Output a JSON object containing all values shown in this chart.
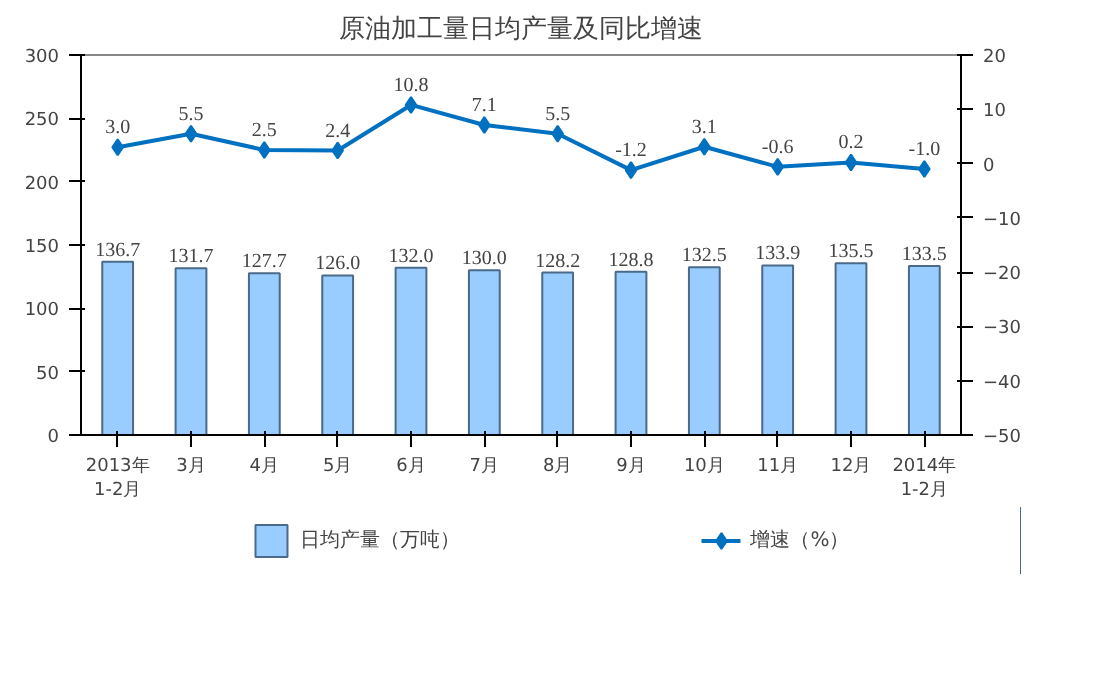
{
  "chart_data": {
    "type": "bar",
    "title": "原油加工量日均产量及同比增速",
    "categories": [
      "2013年\n1-2月",
      "3月",
      "4月",
      "5月",
      "6月",
      "7月",
      "8月",
      "9月",
      "10月",
      "11月",
      "12月",
      "2014年\n1-2月"
    ],
    "series": [
      {
        "name": "日均产量（万吨）",
        "color": "#99ccff",
        "values": [
          136.7,
          131.7,
          127.7,
          126.0,
          132.0,
          130.0,
          128.2,
          128.8,
          132.5,
          133.9,
          135.5,
          133.5
        ],
        "value_labels": [
          "136.7",
          "131.7",
          "127.7",
          "126.0",
          "132.0",
          "130.0",
          "128.2",
          "128.8",
          "132.5",
          "133.9",
          "135.5",
          "133.5"
        ]
      },
      {
        "name": "增速（%）",
        "type": "line",
        "axis": "y2",
        "color": "#0070c0",
        "marker": "diamond",
        "values": [
          3.0,
          5.5,
          2.5,
          2.4,
          10.8,
          7.1,
          5.5,
          -1.2,
          3.1,
          -0.6,
          0.2,
          -1.0
        ],
        "value_labels": [
          "3.0",
          "5.5",
          "2.5",
          "2.4",
          "10.8",
          "7.1",
          "5.5",
          "-1.2",
          "3.1",
          "-0.6",
          "0.2",
          "-1.0"
        ]
      }
    ],
    "ylim": [
      0,
      300
    ],
    "yticks": [
      0,
      50,
      100,
      150,
      200,
      250,
      300
    ],
    "y2lim": [
      -50,
      20
    ],
    "y2ticks": [
      -50,
      -40,
      -30,
      -20,
      -10,
      0,
      10,
      20
    ],
    "legend": "bottom"
  }
}
